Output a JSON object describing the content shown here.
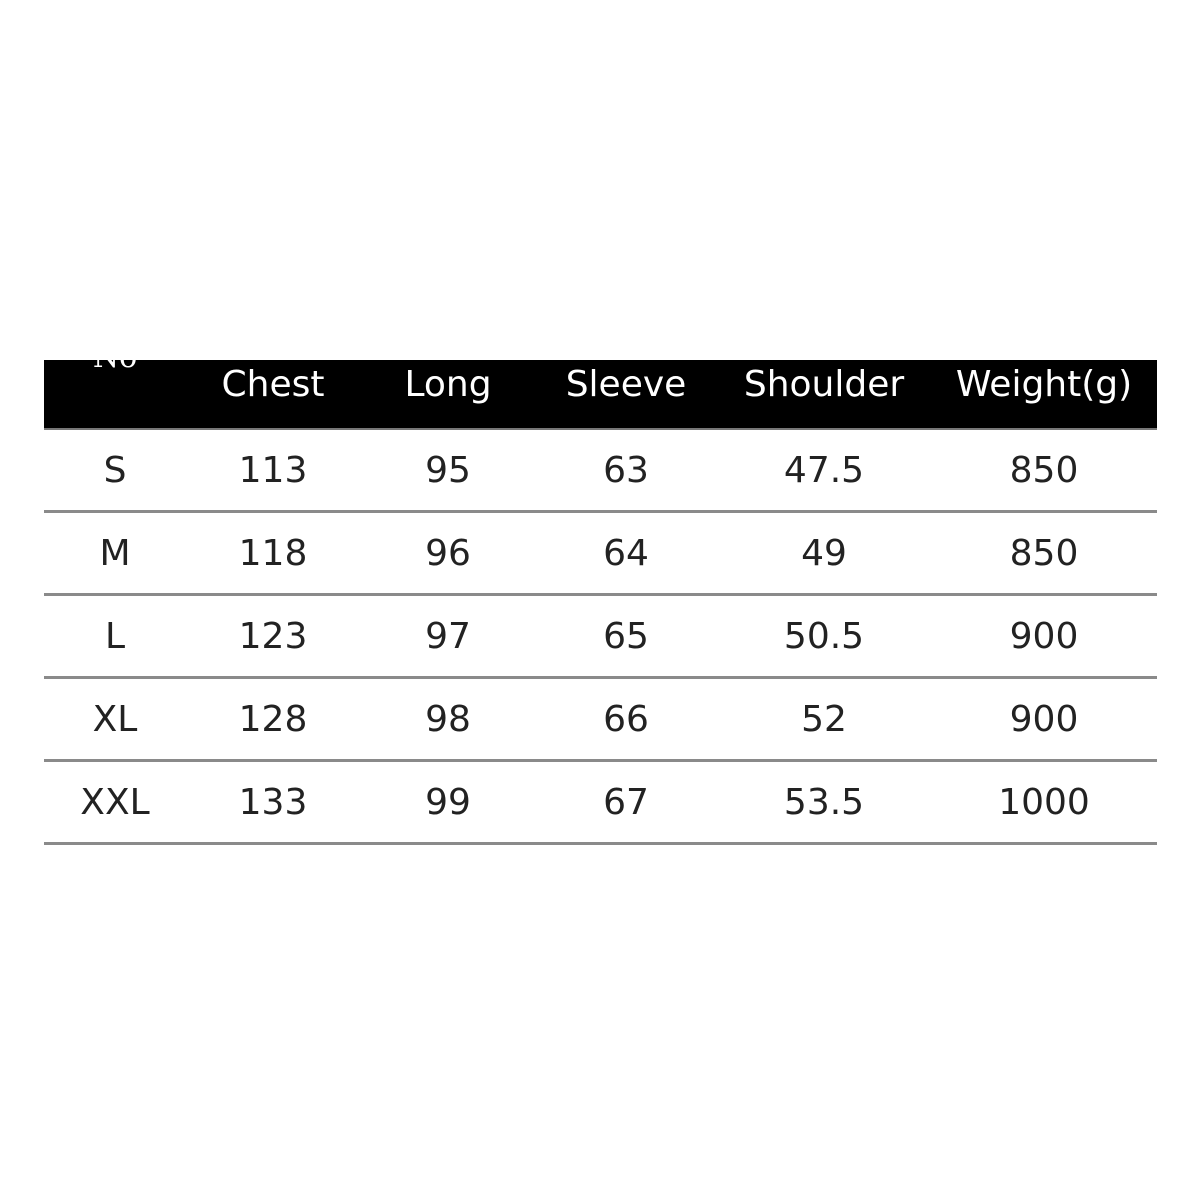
{
  "headers": [
    "No",
    "Chest",
    "Long",
    "Sleeve",
    "Shoulder",
    "Weight(g)"
  ],
  "rows": [
    [
      "S",
      "113",
      "95",
      "63",
      "47.5",
      "850"
    ],
    [
      "M",
      "118",
      "96",
      "64",
      "49",
      "850"
    ],
    [
      "L",
      "123",
      "97",
      "65",
      "50.5",
      "900"
    ],
    [
      "XL",
      "128",
      "98",
      "66",
      "52",
      "900"
    ],
    [
      "XXL",
      "133",
      "99",
      "67",
      "53.5",
      "1000"
    ]
  ]
}
